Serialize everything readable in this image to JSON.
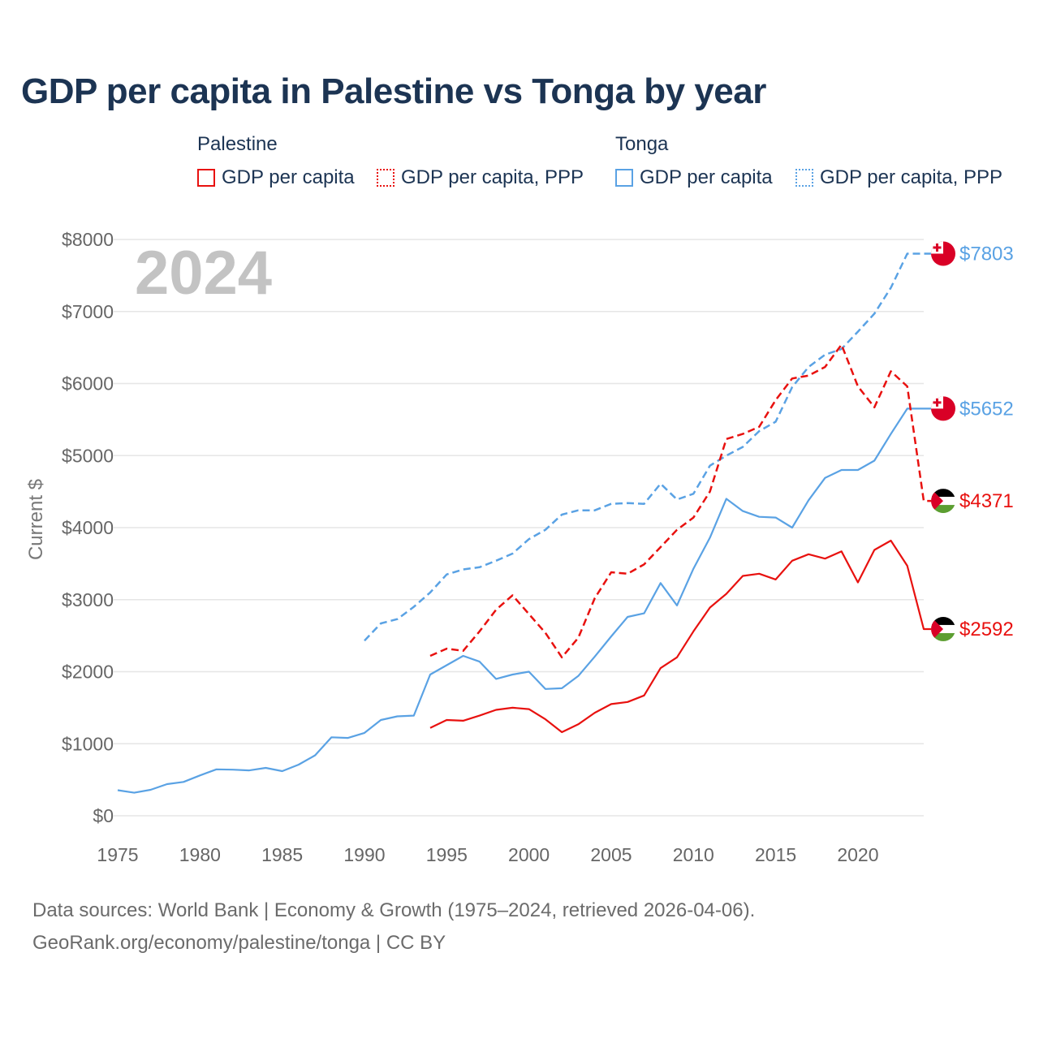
{
  "chart_data": {
    "type": "line",
    "title": "GDP per capita in Palestine vs Tonga by year",
    "ylabel": "Current $",
    "xlabel": "",
    "year_label": "2024",
    "xlim": [
      1975,
      2024
    ],
    "ylim": [
      0,
      8000
    ],
    "x_ticks": [
      1975,
      1980,
      1985,
      1990,
      1995,
      2000,
      2005,
      2010,
      2015,
      2020
    ],
    "y_ticks": [
      0,
      1000,
      2000,
      3000,
      4000,
      5000,
      6000,
      7000,
      8000
    ],
    "y_tick_labels": [
      "$0",
      "$1000",
      "$2000",
      "$3000",
      "$4000",
      "$5000",
      "$6000",
      "$7000",
      "$8000"
    ],
    "legend": {
      "groups": [
        {
          "country": "Palestine",
          "items": [
            "GDP per capita",
            "GDP per capita, PPP"
          ]
        },
        {
          "country": "Tonga",
          "items": [
            "GDP per capita",
            "GDP per capita, PPP"
          ]
        }
      ]
    },
    "colors": {
      "palestine": "#e8110f",
      "tonga": "#5aa2e4"
    },
    "series": [
      {
        "name": "Tonga GDP per capita",
        "country": "Tonga",
        "style": "solid",
        "color": "#5aa2e4",
        "x": [
          1975,
          1976,
          1977,
          1978,
          1979,
          1980,
          1981,
          1982,
          1983,
          1984,
          1985,
          1986,
          1987,
          1988,
          1989,
          1990,
          1991,
          1992,
          1993,
          1994,
          1995,
          1996,
          1997,
          1998,
          1999,
          2000,
          2001,
          2002,
          2003,
          2004,
          2005,
          2006,
          2007,
          2008,
          2009,
          2010,
          2011,
          2012,
          2013,
          2014,
          2015,
          2016,
          2017,
          2018,
          2019,
          2020,
          2021,
          2022,
          2023
        ],
        "values": [
          355,
          320,
          360,
          440,
          470,
          560,
          645,
          640,
          630,
          665,
          620,
          710,
          840,
          1090,
          1080,
          1150,
          1330,
          1380,
          1390,
          1960,
          2090,
          2220,
          2140,
          1900,
          1960,
          2000,
          1760,
          1770,
          1940,
          2210,
          2490,
          2760,
          2810,
          3230,
          2920,
          3430,
          3860,
          4400,
          4230,
          4150,
          4140,
          4000,
          4380,
          4690,
          4800,
          4800,
          4930,
          5300,
          5652
        ],
        "end_value": 5652,
        "end_label": "$5652"
      },
      {
        "name": "Tonga GDP per capita, PPP",
        "country": "Tonga",
        "style": "dashed",
        "color": "#5aa2e4",
        "x": [
          1990,
          1991,
          1992,
          1993,
          1994,
          1995,
          1996,
          1997,
          1998,
          1999,
          2000,
          2001,
          2002,
          2003,
          2004,
          2005,
          2006,
          2007,
          2008,
          2009,
          2010,
          2011,
          2012,
          2013,
          2014,
          2015,
          2016,
          2017,
          2018,
          2019,
          2020,
          2021,
          2022,
          2023
        ],
        "values": [
          2430,
          2670,
          2730,
          2900,
          3100,
          3350,
          3420,
          3450,
          3540,
          3640,
          3840,
          3970,
          4180,
          4240,
          4240,
          4330,
          4340,
          4330,
          4610,
          4390,
          4470,
          4860,
          5000,
          5120,
          5340,
          5470,
          5950,
          6230,
          6400,
          6480,
          6720,
          6970,
          7330,
          7803
        ],
        "end_value": 7803,
        "end_label": "$7803"
      },
      {
        "name": "Palestine GDP per capita",
        "country": "Palestine",
        "style": "solid",
        "color": "#e8110f",
        "x": [
          1994,
          1995,
          1996,
          1997,
          1998,
          1999,
          2000,
          2001,
          2002,
          2003,
          2004,
          2005,
          2006,
          2007,
          2008,
          2009,
          2010,
          2011,
          2012,
          2013,
          2014,
          2015,
          2016,
          2017,
          2018,
          2019,
          2020,
          2021,
          2022,
          2023,
          2024
        ],
        "values": [
          1220,
          1330,
          1320,
          1390,
          1470,
          1500,
          1480,
          1340,
          1160,
          1270,
          1430,
          1550,
          1580,
          1670,
          2050,
          2200,
          2560,
          2890,
          3080,
          3330,
          3360,
          3280,
          3540,
          3630,
          3570,
          3670,
          3240,
          3690,
          3820,
          3470,
          2592
        ],
        "end_value": 2592,
        "end_label": "$2592"
      },
      {
        "name": "Palestine GDP per capita, PPP",
        "country": "Palestine",
        "style": "dashed",
        "color": "#e8110f",
        "x": [
          1994,
          1995,
          1996,
          1997,
          1998,
          1999,
          2000,
          2001,
          2002,
          2003,
          2004,
          2005,
          2006,
          2007,
          2008,
          2009,
          2010,
          2011,
          2012,
          2013,
          2014,
          2015,
          2016,
          2017,
          2018,
          2019,
          2020,
          2021,
          2022,
          2023,
          2024
        ],
        "values": [
          2220,
          2320,
          2290,
          2560,
          2860,
          3060,
          2800,
          2540,
          2200,
          2470,
          3020,
          3380,
          3360,
          3490,
          3730,
          3970,
          4140,
          4500,
          5230,
          5300,
          5400,
          5770,
          6070,
          6110,
          6230,
          6540,
          5960,
          5670,
          6170,
          5960,
          4371
        ],
        "end_value": 4371,
        "end_label": "$4371"
      }
    ]
  },
  "footer": {
    "line1": "Data sources: World Bank | Economy & Growth (1975–2024, retrieved 2026-04-06).",
    "line2": "GeoRank.org/economy/palestine/tonga | CC BY"
  }
}
